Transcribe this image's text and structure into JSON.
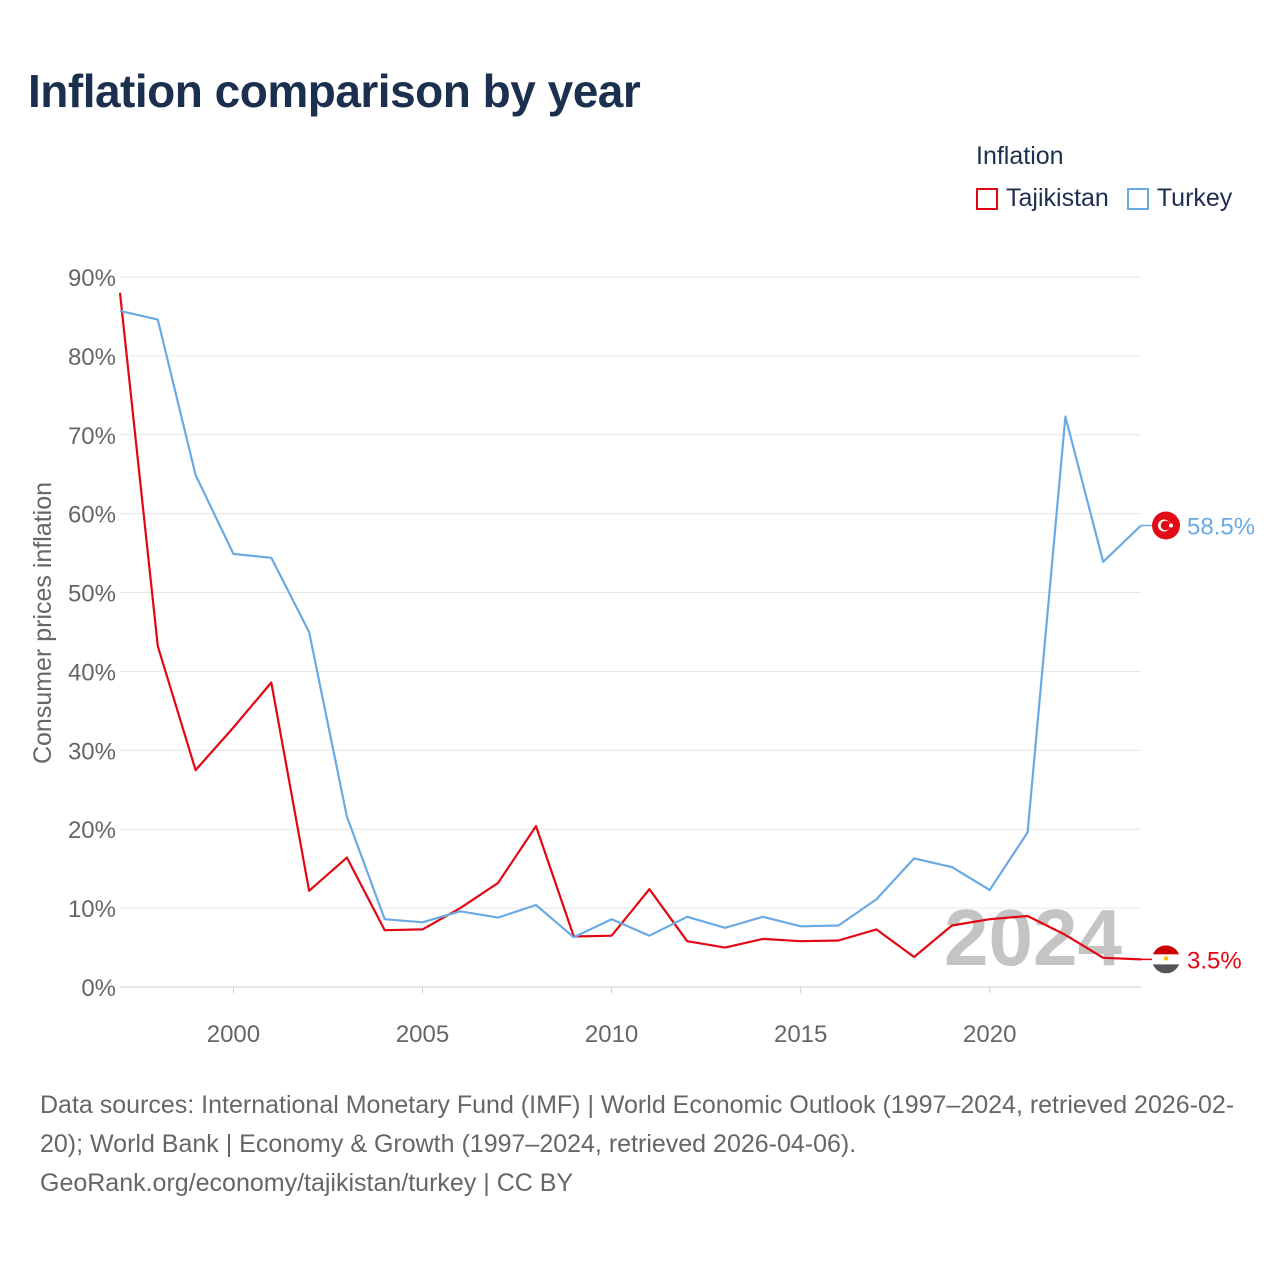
{
  "title": "Inflation comparison by year",
  "legend": {
    "title": "Inflation",
    "items": [
      {
        "label": "Tajikistan",
        "color": "#e30613"
      },
      {
        "label": "Turkey",
        "color": "#6aaae4"
      }
    ]
  },
  "chart_data": {
    "type": "line",
    "ylabel": "Consumer prices inflation",
    "xlabel": "",
    "ylim": [
      0,
      90
    ],
    "xlim": [
      1997,
      2024
    ],
    "yticks": [
      0,
      10,
      20,
      30,
      40,
      50,
      60,
      70,
      80,
      90
    ],
    "ytick_labels": [
      "0%",
      "10%",
      "20%",
      "30%",
      "40%",
      "50%",
      "60%",
      "70%",
      "80%",
      "90%"
    ],
    "xticks": [
      2000,
      2005,
      2010,
      2015,
      2020
    ],
    "xtick_labels": [
      "2000",
      "2005",
      "2010",
      "2015",
      "2020"
    ],
    "grid": true,
    "year_watermark": "2024",
    "x": [
      1997,
      1998,
      1999,
      2000,
      2001,
      2002,
      2003,
      2004,
      2005,
      2006,
      2007,
      2008,
      2009,
      2010,
      2011,
      2012,
      2013,
      2014,
      2015,
      2016,
      2017,
      2018,
      2019,
      2020,
      2021,
      2022,
      2023,
      2024
    ],
    "series": [
      {
        "name": "Tajikistan",
        "color": "#e30613",
        "end_label": "3.5%",
        "values": [
          88.0,
          43.2,
          27.5,
          32.9,
          38.6,
          12.2,
          16.4,
          7.2,
          7.3,
          10.0,
          13.2,
          20.4,
          6.4,
          6.5,
          12.4,
          5.8,
          5.0,
          6.1,
          5.8,
          5.9,
          7.3,
          3.8,
          7.8,
          8.6,
          9.0,
          6.6,
          3.7,
          3.5
        ]
      },
      {
        "name": "Turkey",
        "color": "#6aaae4",
        "end_label": "58.5%",
        "values": [
          85.7,
          84.6,
          64.9,
          54.9,
          54.4,
          45.0,
          21.6,
          8.6,
          8.2,
          9.6,
          8.8,
          10.4,
          6.3,
          8.6,
          6.5,
          8.9,
          7.5,
          8.9,
          7.7,
          7.8,
          11.1,
          16.3,
          15.2,
          12.3,
          19.6,
          72.3,
          53.9,
          58.5
        ]
      }
    ]
  },
  "footer": {
    "line1": "Data sources: International Monetary Fund (IMF) | World Economic Outlook (1997–2024, retrieved 2026-02-20); World Bank | Economy & Growth (1997–2024, retrieved 2026-04-06).",
    "line2": "GeoRank.org/economy/tajikistan/turkey | CC BY"
  }
}
